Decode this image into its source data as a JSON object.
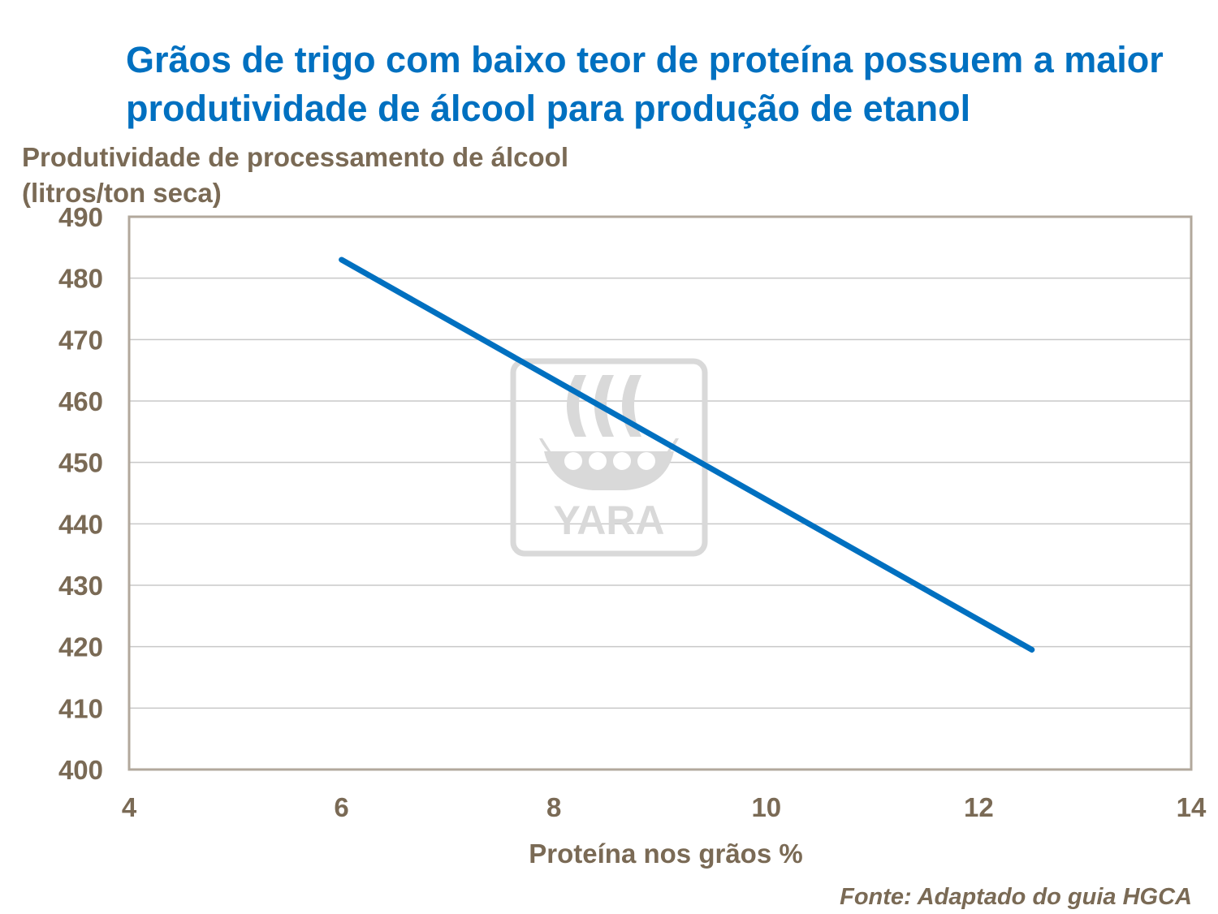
{
  "title": "Grãos de trigo com baixo teor de proteína possuem a maior produtividade de álcool para produção de etanol",
  "source": "Fonte: Adaptado do guia HGCA",
  "watermark": {
    "text": "YARA",
    "color": "#D9D9D9"
  },
  "colors": {
    "title": "#0070C0",
    "line": "#0070C0",
    "text": "#7A6A55",
    "frame": "#B2A89C",
    "grid": "#C8C8C8"
  },
  "chart_data": {
    "type": "line",
    "ylabel": "Produtividade de processamento de álcool (litros/ton seca)",
    "xlabel": "Proteína nos grãos %",
    "xlim": [
      4,
      14
    ],
    "ylim": [
      400,
      490
    ],
    "x_ticks": [
      "4",
      "6",
      "8",
      "10",
      "12",
      "14"
    ],
    "y_ticks": [
      "400",
      "410",
      "420",
      "430",
      "440",
      "450",
      "460",
      "470",
      "480",
      "490"
    ],
    "grid": "horizontal",
    "series": [
      {
        "x": [
          6,
          12.5
        ],
        "y": [
          483,
          419.5
        ]
      }
    ]
  }
}
